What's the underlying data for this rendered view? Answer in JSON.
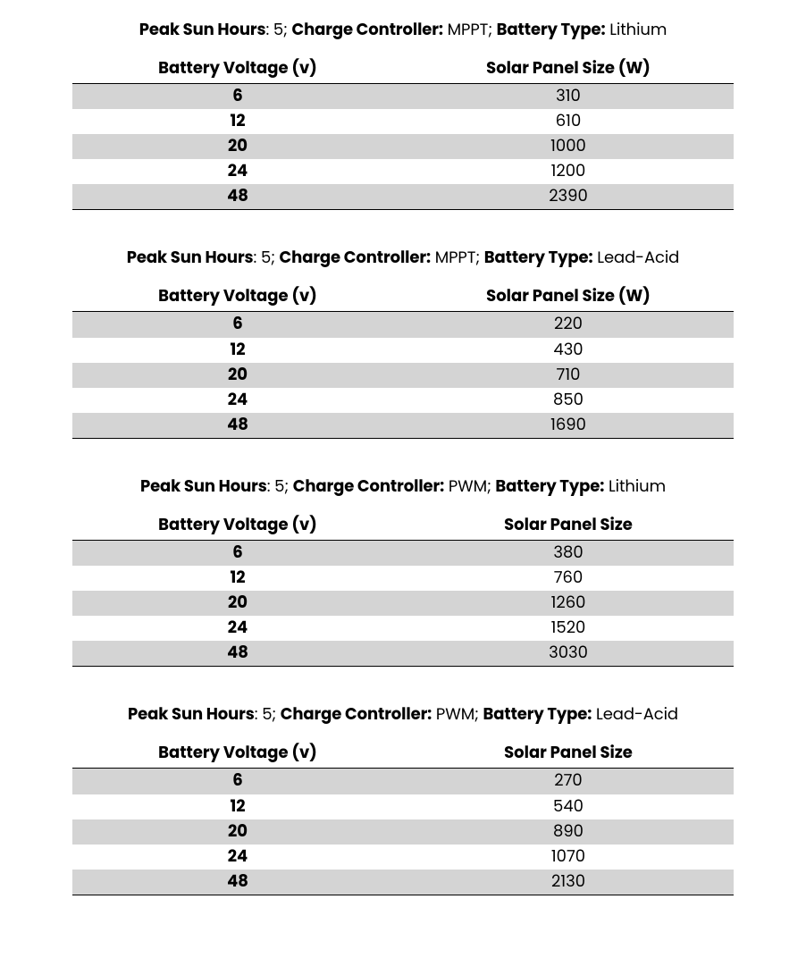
{
  "labels": {
    "peak_sun_label": "Peak Sun Hours",
    "charge_controller_label": "Charge Controller:",
    "battery_type_label": "Battery Type:",
    "col_voltage": "Battery Voltage (v)",
    "col_panel_w": "Solar Panel Size (W)",
    "col_panel": "Solar Panel Size"
  },
  "colors": {
    "stripe": "#d4d4d4",
    "background": "#ffffff",
    "text": "#000000",
    "rule": "#000000"
  },
  "typography": {
    "caption_fontsize": 18,
    "table_fontsize": 18,
    "header_weight": 700,
    "voltage_weight": 700,
    "value_weight": 400
  },
  "sections": [
    {
      "peak_sun_hours": "5",
      "charge_controller": "MPPT",
      "battery_type": "Lithium",
      "panel_header_key": "col_panel_w",
      "rows": [
        {
          "voltage": "6",
          "panel": "310"
        },
        {
          "voltage": "12",
          "panel": "610"
        },
        {
          "voltage": "20",
          "panel": "1000"
        },
        {
          "voltage": "24",
          "panel": "1200"
        },
        {
          "voltage": "48",
          "panel": "2390"
        }
      ]
    },
    {
      "peak_sun_hours": "5",
      "charge_controller": "MPPT",
      "battery_type": "Lead-Acid",
      "panel_header_key": "col_panel_w",
      "rows": [
        {
          "voltage": "6",
          "panel": "220"
        },
        {
          "voltage": "12",
          "panel": "430"
        },
        {
          "voltage": "20",
          "panel": "710"
        },
        {
          "voltage": "24",
          "panel": "850"
        },
        {
          "voltage": "48",
          "panel": "1690"
        }
      ]
    },
    {
      "peak_sun_hours": "5",
      "charge_controller": "PWM",
      "battery_type": "Lithium",
      "panel_header_key": "col_panel",
      "rows": [
        {
          "voltage": "6",
          "panel": "380"
        },
        {
          "voltage": "12",
          "panel": "760"
        },
        {
          "voltage": "20",
          "panel": "1260"
        },
        {
          "voltage": "24",
          "panel": "1520"
        },
        {
          "voltage": "48",
          "panel": "3030"
        }
      ]
    },
    {
      "peak_sun_hours": "5",
      "charge_controller": "PWM",
      "battery_type": "Lead-Acid",
      "panel_header_key": "col_panel",
      "rows": [
        {
          "voltage": "6",
          "panel": "270"
        },
        {
          "voltage": "12",
          "panel": "540"
        },
        {
          "voltage": "20",
          "panel": "890"
        },
        {
          "voltage": "24",
          "panel": "1070"
        },
        {
          "voltage": "48",
          "panel": "2130"
        }
      ]
    }
  ]
}
